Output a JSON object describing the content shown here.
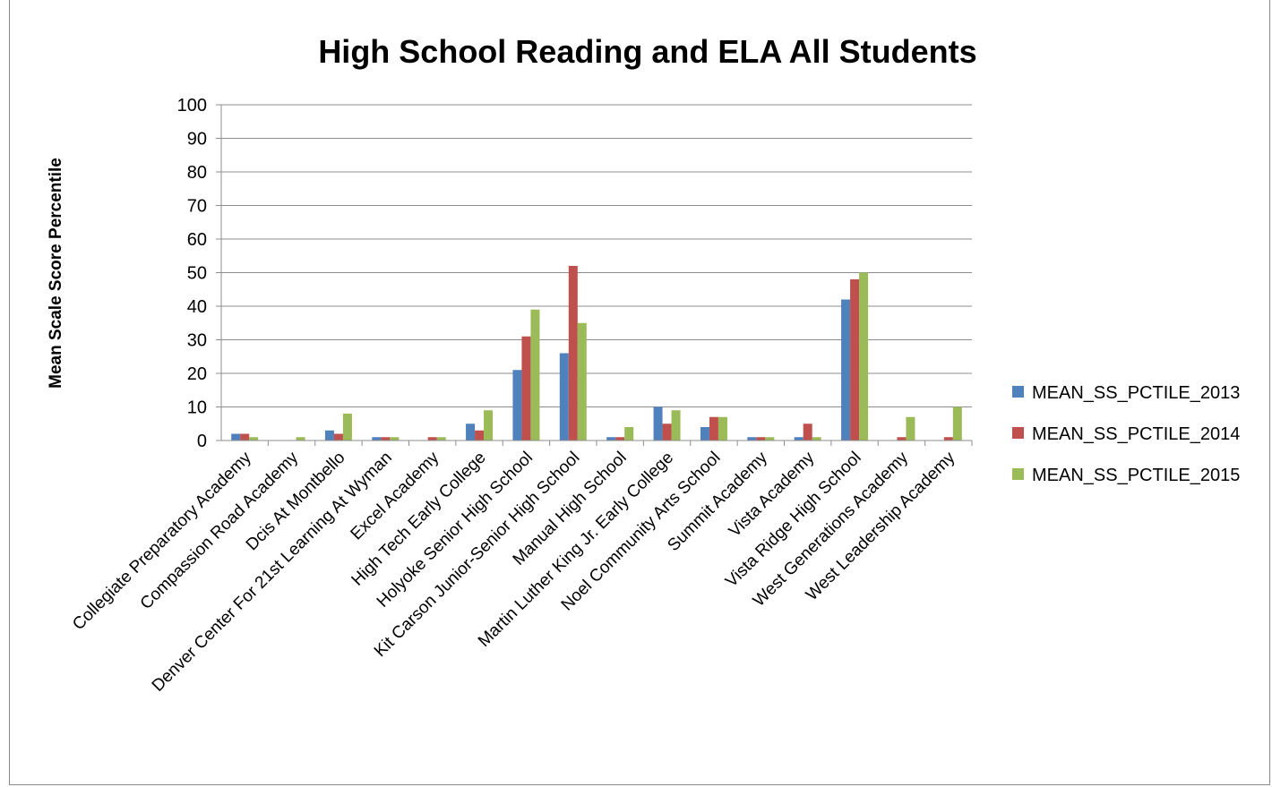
{
  "chart_data": {
    "type": "bar",
    "title": "High School Reading and ELA All Students",
    "xlabel": "",
    "ylabel": "Mean Scale Score Percentile",
    "ylim": [
      0,
      100
    ],
    "yticks": [
      0,
      10,
      20,
      30,
      40,
      50,
      60,
      70,
      80,
      90,
      100
    ],
    "grid": true,
    "legend_position": "right",
    "categories": [
      "Collegiate Preparatory Academy",
      "Compassion Road Academy",
      "Dcis At Montbello",
      "Denver Center For 21st Learning At Wyman",
      "Excel Academy",
      "High Tech Early College",
      "Holyoke Senior High School",
      "Kit Carson Junior-Senior High School",
      "Manual High School",
      "Martin Luther King Jr. Early College",
      "Noel Community Arts School",
      "Summit Academy",
      "Vista Academy",
      "Vista Ridge High School",
      "West Generations Academy",
      "West Leadership Academy"
    ],
    "series": [
      {
        "name": "MEAN_SS_PCTILE_2013",
        "color": "#4f81bd",
        "values": [
          2,
          0,
          3,
          1,
          0,
          5,
          21,
          26,
          1,
          10,
          4,
          1,
          1,
          42,
          0,
          0
        ]
      },
      {
        "name": "MEAN_SS_PCTILE_2014",
        "color": "#c0504d",
        "values": [
          2,
          0,
          2,
          1,
          1,
          3,
          31,
          52,
          1,
          5,
          7,
          1,
          5,
          48,
          1,
          1
        ]
      },
      {
        "name": "MEAN_SS_PCTILE_2015",
        "color": "#9bbb59",
        "values": [
          1,
          1,
          8,
          1,
          1,
          9,
          39,
          35,
          4,
          9,
          7,
          1,
          1,
          50,
          7,
          10
        ]
      }
    ]
  }
}
